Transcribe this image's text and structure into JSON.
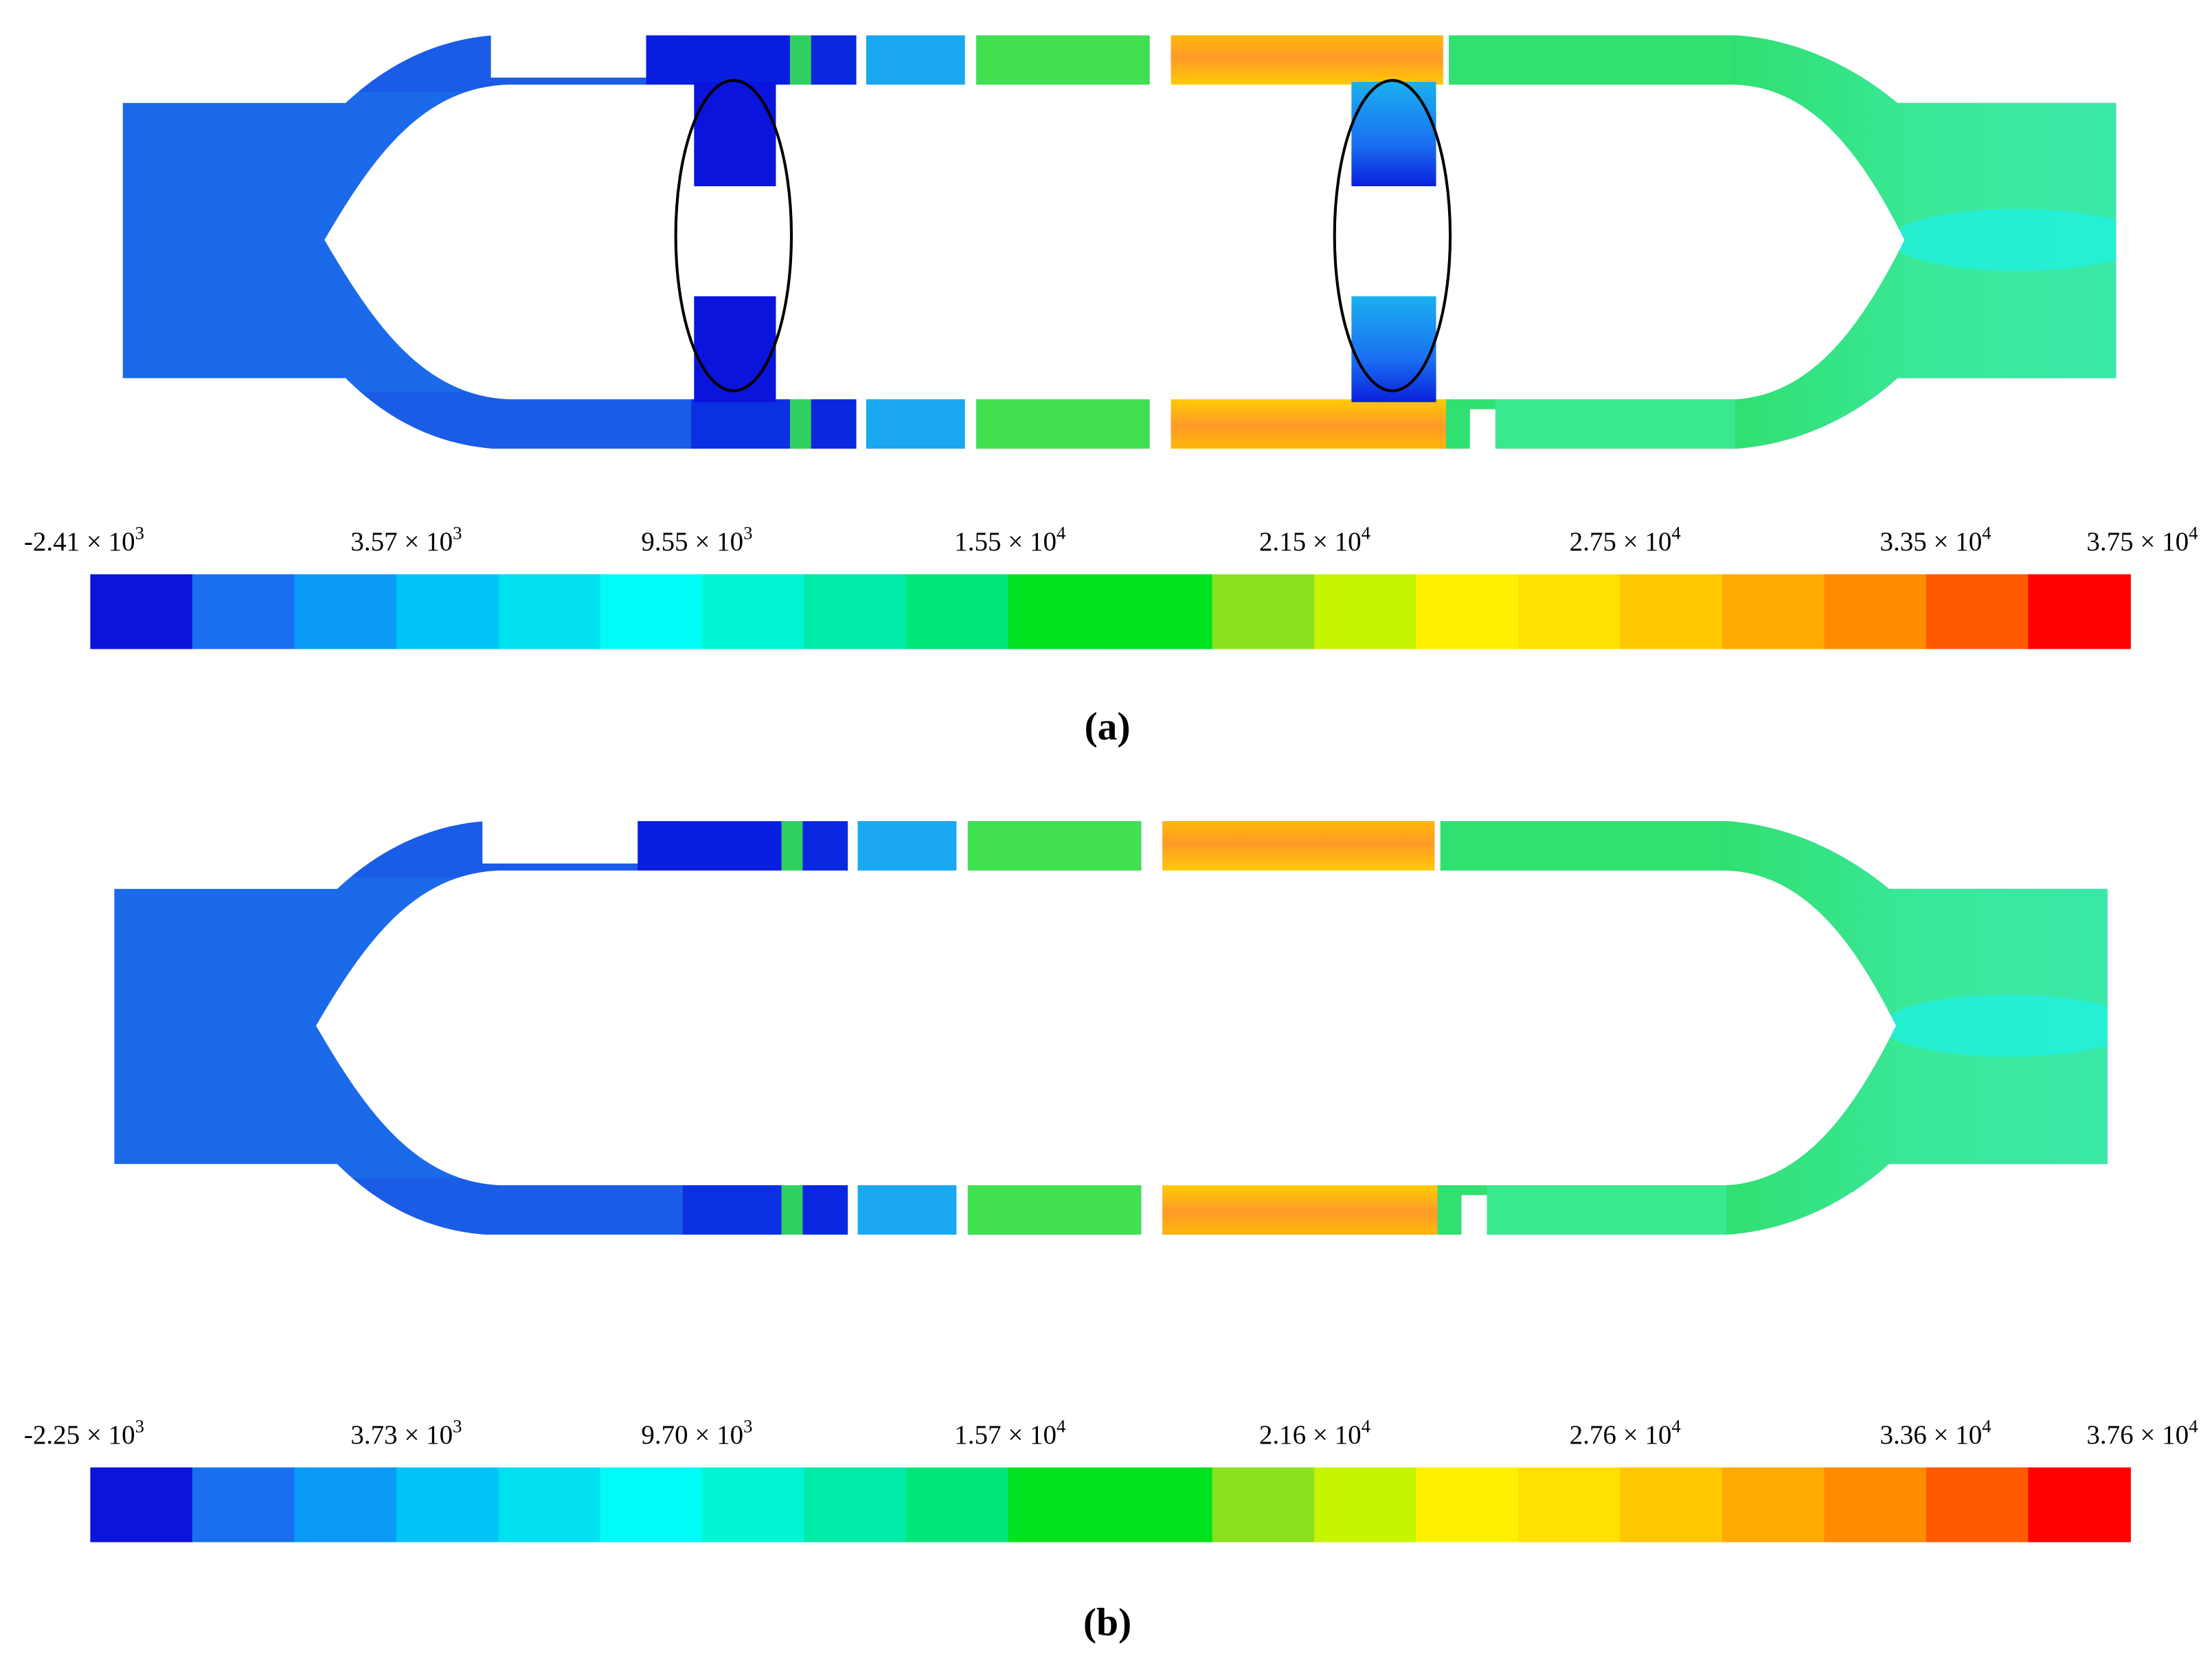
{
  "panels": [
    {
      "caption": "(a)",
      "colorbar": {
        "labels": [
          {
            "mantissa": "-2.41 × 10",
            "power": "3"
          },
          {
            "mantissa": "3.57 × 10",
            "power": "3"
          },
          {
            "mantissa": "9.55 × 10",
            "power": "3"
          },
          {
            "mantissa": "1.55 × 10",
            "power": "4"
          },
          {
            "mantissa": "2.15 × 10",
            "power": "4"
          },
          {
            "mantissa": "2.75 × 10",
            "power": "4"
          },
          {
            "mantissa": "3.35 × 10",
            "power": "4"
          },
          {
            "mantissa": "3.75 × 10",
            "power": "4"
          }
        ]
      }
    },
    {
      "caption": "(b)",
      "colorbar": {
        "labels": [
          {
            "mantissa": "-2.25 × 10",
            "power": "3"
          },
          {
            "mantissa": "3.73 × 10",
            "power": "3"
          },
          {
            "mantissa": "9.70 × 10",
            "power": "3"
          },
          {
            "mantissa": "1.57 × 10",
            "power": "4"
          },
          {
            "mantissa": "2.16 × 10",
            "power": "4"
          },
          {
            "mantissa": "2.76 × 10",
            "power": "4"
          },
          {
            "mantissa": "3.36 × 10",
            "power": "4"
          },
          {
            "mantissa": "3.76 × 10",
            "power": "4"
          }
        ]
      }
    }
  ],
  "colorbar_colors": [
    "#0a14dc",
    "#1a6ff0",
    "#0b9bf5",
    "#00c4f5",
    "#00e0f0",
    "#00fcf8",
    "#00f5d4",
    "#00eaa8",
    "#00e67a",
    "#00e21e",
    "#00e21e",
    "#8ce01e",
    "#c6f500",
    "#fff000",
    "#ffe000",
    "#ffc800",
    "#ffaa00",
    "#ff8c00",
    "#ff5a00",
    "#ff0000"
  ]
}
